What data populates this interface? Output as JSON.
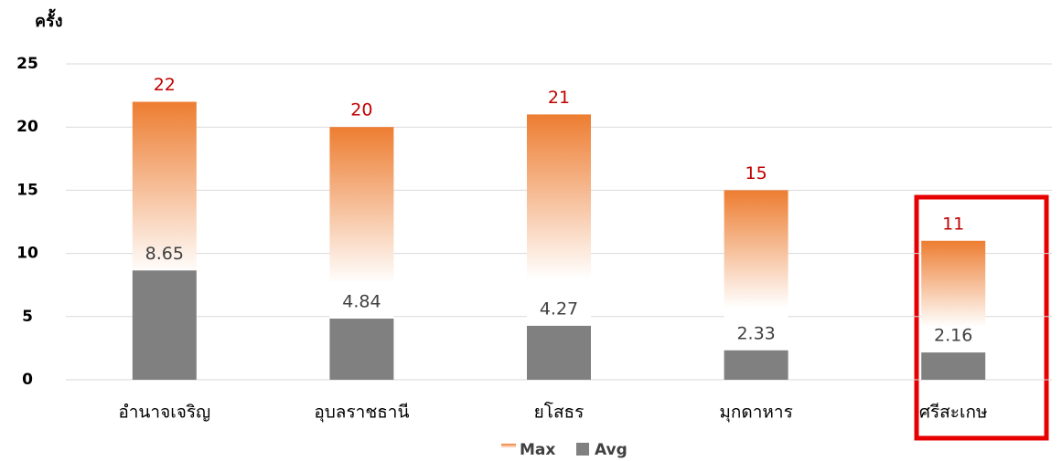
{
  "chart_data": {
    "type": "bar",
    "y_label": "ครั้ง",
    "categories": [
      "อำนาจเจริญ",
      "อุบลราชธานี",
      "ยโสธร",
      "มุกดาหาร",
      "ศรีสะเกษ"
    ],
    "series": [
      {
        "name": "Max",
        "color": "#ed7d31",
        "label_color": "#c00000",
        "values": [
          22,
          20,
          21,
          15,
          11
        ]
      },
      {
        "name": "Avg",
        "color": "#808080",
        "label_color": "#404040",
        "values": [
          8.65,
          4.84,
          4.27,
          2.33,
          2.16
        ]
      }
    ],
    "ylim": [
      0,
      25
    ],
    "yticks": [
      0,
      5,
      10,
      15,
      20,
      25
    ],
    "grid": true,
    "legend": "bottom"
  }
}
